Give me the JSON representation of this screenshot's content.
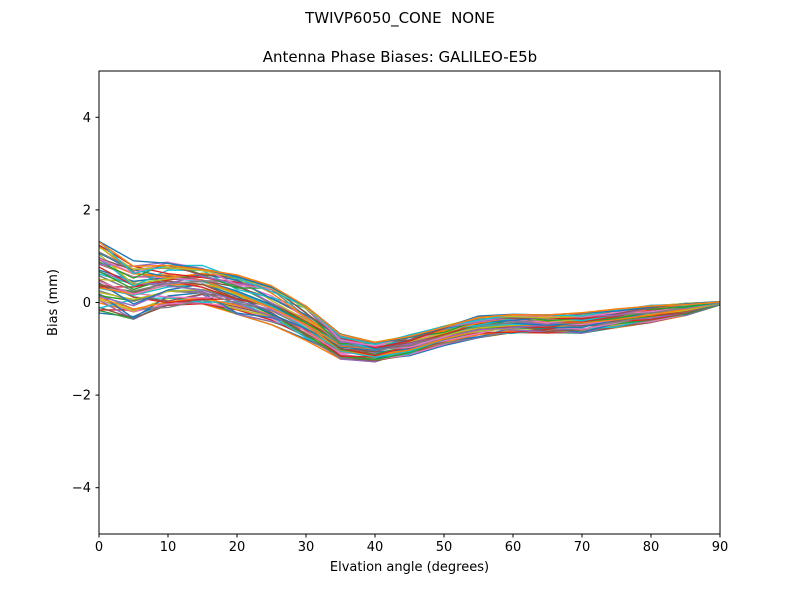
{
  "figure": {
    "suptitle": "TWIVP6050_CONE  NONE",
    "background": "#ffffff",
    "axes_edge_color": "#000000"
  },
  "chart_data": {
    "type": "line",
    "title": "Antenna Phase Biases: GALILEO-E5b",
    "xlabel": "Elvation angle (degrees)",
    "ylabel": "Bias (mm)",
    "xlim": [
      0,
      90
    ],
    "ylim": [
      -5,
      5
    ],
    "xticks": [
      0,
      10,
      20,
      30,
      40,
      50,
      60,
      70,
      80,
      90
    ],
    "xtick_labels": [
      "0",
      "10",
      "20",
      "30",
      "40",
      "50",
      "60",
      "70",
      "80",
      "90"
    ],
    "yticks": [
      -4,
      -2,
      0,
      2,
      4
    ],
    "ytick_labels": [
      "−4",
      "−2",
      "0",
      "2",
      "4"
    ],
    "grid": false,
    "legend": "none",
    "x": [
      0,
      5,
      10,
      15,
      20,
      25,
      30,
      35,
      40,
      45,
      50,
      55,
      60,
      65,
      70,
      75,
      80,
      85,
      90
    ],
    "band_top": [
      1.32,
      0.9,
      0.88,
      0.8,
      0.64,
      0.36,
      -0.08,
      -0.68,
      -0.84,
      -0.7,
      -0.48,
      -0.28,
      -0.25,
      -0.27,
      -0.22,
      -0.14,
      -0.06,
      -0.02,
      0.02
    ],
    "band_bottom": [
      -0.23,
      -0.36,
      -0.14,
      -0.05,
      -0.25,
      -0.48,
      -0.82,
      -1.22,
      -1.28,
      -1.15,
      -0.93,
      -0.76,
      -0.7,
      -0.71,
      -0.66,
      -0.54,
      -0.43,
      -0.28,
      -0.05
    ],
    "n_lines": 52,
    "line_width": 1.4,
    "color_cycle": [
      "#1f77b4",
      "#ff7f0e",
      "#2ca02c",
      "#d62728",
      "#9467bd",
      "#8c564b",
      "#e377c2",
      "#7f7f7f",
      "#bcbd22",
      "#17becf"
    ]
  }
}
